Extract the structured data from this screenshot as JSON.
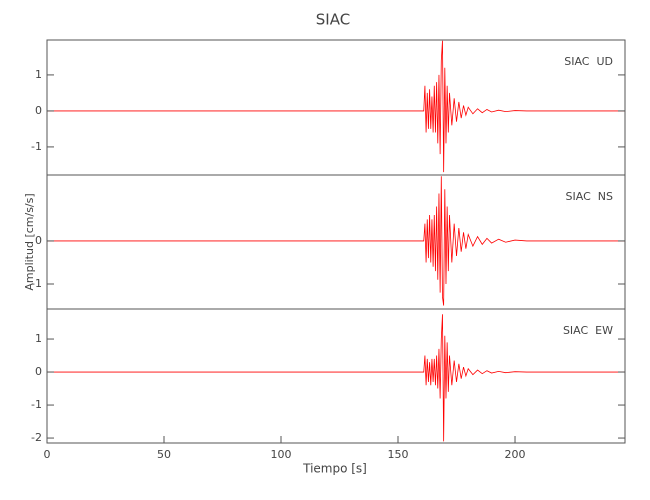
{
  "chart_data": [
    {
      "type": "line",
      "title": "SIAC",
      "x": [
        0,
        161,
        161.5,
        162,
        162.5,
        163,
        163.5,
        164,
        164.5,
        165,
        165.5,
        166,
        166.5,
        167,
        167.5,
        168,
        168.5,
        169,
        169.5,
        170,
        170.5,
        171,
        171.5,
        172,
        173,
        174,
        175,
        176,
        177,
        178,
        179,
        180,
        182,
        184,
        186,
        188,
        190,
        193,
        196,
        200,
        205,
        247
      ],
      "series": [
        {
          "name": "SIAC  UD",
          "color": "#ff0000",
          "values": [
            0,
            0,
            0.7,
            -0.6,
            0.5,
            -0.5,
            0.6,
            -0.5,
            0.4,
            -0.6,
            0.7,
            -0.6,
            0.8,
            -0.9,
            1.0,
            -1.2,
            1.4,
            1.95,
            -1.7,
            1.2,
            -0.9,
            0.7,
            -0.6,
            0.5,
            -0.4,
            0.35,
            -0.3,
            0.25,
            -0.2,
            0.15,
            -0.12,
            0.1,
            -0.08,
            0.06,
            -0.05,
            0.04,
            -0.03,
            0.02,
            -0.02,
            0.01,
            0,
            0
          ]
        }
      ],
      "xlim": [
        0,
        247
      ],
      "ylim": [
        -1.78,
        1.97
      ],
      "yticks": [
        -1,
        0,
        1
      ]
    },
    {
      "type": "line",
      "y_label": "Amplitud [cm/s/s]",
      "x": [
        0,
        161,
        161.5,
        162,
        162.5,
        163,
        163.5,
        164,
        164.5,
        165,
        165.5,
        166,
        166.5,
        167,
        167.5,
        168,
        168.5,
        169,
        169.5,
        170,
        170.5,
        171,
        171.5,
        172,
        173,
        174,
        175,
        176,
        177,
        178,
        179,
        180,
        182,
        184,
        186,
        188,
        190,
        193,
        196,
        200,
        205,
        247
      ],
      "series": [
        {
          "name": "SIAC  NS",
          "color": "#ff0000",
          "values": [
            0,
            0,
            0.4,
            -0.5,
            0.5,
            -0.4,
            0.6,
            -0.5,
            0.5,
            -0.6,
            0.6,
            -0.7,
            0.8,
            -0.9,
            1.1,
            -1.2,
            1.5,
            -1.3,
            -1.5,
            1.2,
            -1.0,
            0.8,
            -0.7,
            0.6,
            -0.5,
            0.4,
            -0.35,
            0.3,
            -0.25,
            0.2,
            -0.18,
            0.15,
            -0.12,
            0.1,
            -0.08,
            0.06,
            -0.05,
            0.04,
            -0.03,
            0.02,
            0,
            0
          ]
        }
      ],
      "xlim": [
        0,
        247
      ],
      "ylim": [
        -1.58,
        1.53
      ],
      "yticks": [
        -1,
        0
      ]
    },
    {
      "type": "line",
      "x_label": "Tiempo [s]",
      "x": [
        0,
        161,
        161.5,
        162,
        162.5,
        163,
        163.5,
        164,
        164.5,
        165,
        165.5,
        166,
        166.5,
        167,
        167.5,
        168,
        168.5,
        169,
        169.5,
        170,
        170.5,
        171,
        171.5,
        172,
        173,
        174,
        175,
        176,
        177,
        178,
        179,
        180,
        182,
        184,
        186,
        188,
        190,
        193,
        196,
        200,
        205,
        247
      ],
      "series": [
        {
          "name": "SIAC  EW",
          "color": "#ff0000",
          "values": [
            0,
            0,
            0.5,
            -0.4,
            0.4,
            -0.3,
            0.3,
            -0.4,
            0.4,
            -0.3,
            0.4,
            -0.4,
            0.5,
            -0.5,
            0.7,
            -0.8,
            1.0,
            1.75,
            -2.1,
            1.1,
            -0.8,
            0.9,
            -0.6,
            0.5,
            -0.4,
            0.35,
            -0.3,
            0.25,
            -0.2,
            0.15,
            -0.12,
            0.1,
            -0.08,
            0.06,
            -0.05,
            0.04,
            -0.03,
            0.02,
            -0.02,
            0.01,
            0,
            0
          ]
        }
      ],
      "xlim": [
        0,
        247
      ],
      "ylim": [
        -2.15,
        1.91
      ],
      "yticks": [
        -2,
        -1,
        0,
        1
      ],
      "xticks": [
        0,
        50,
        100,
        150,
        200
      ]
    }
  ]
}
